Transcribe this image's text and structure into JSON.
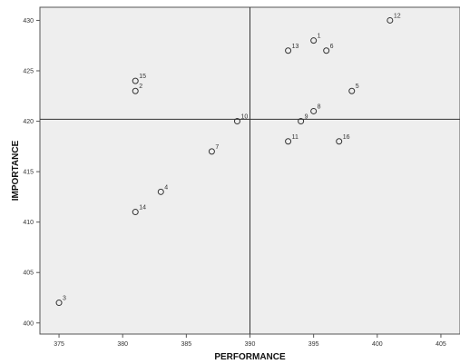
{
  "chart_data": {
    "type": "scatter",
    "title": "",
    "xlabel": "PERFORMANCE",
    "ylabel": "IMPORTANCE",
    "xlim": [
      373.5,
      406.5
    ],
    "ylim": [
      398.9,
      431.3
    ],
    "xticks": [
      375,
      380,
      385,
      390,
      395,
      400,
      405
    ],
    "yticks": [
      400,
      405,
      410,
      415,
      420,
      425,
      430
    ],
    "reference_lines": {
      "x": 390,
      "y": 420.2
    },
    "grid": false,
    "background_color": "#eeeeee",
    "marker_color": "#333333",
    "points": [
      {
        "label": "1",
        "x": 395,
        "y": 428
      },
      {
        "label": "2",
        "x": 381,
        "y": 423
      },
      {
        "label": "3",
        "x": 375,
        "y": 402
      },
      {
        "label": "4",
        "x": 383,
        "y": 413
      },
      {
        "label": "5",
        "x": 398,
        "y": 423
      },
      {
        "label": "6",
        "x": 396,
        "y": 427
      },
      {
        "label": "7",
        "x": 387,
        "y": 417
      },
      {
        "label": "8",
        "x": 395,
        "y": 421
      },
      {
        "label": "9",
        "x": 394,
        "y": 420
      },
      {
        "label": "10",
        "x": 389,
        "y": 420
      },
      {
        "label": "11",
        "x": 393,
        "y": 418
      },
      {
        "label": "12",
        "x": 401,
        "y": 430
      },
      {
        "label": "13",
        "x": 393,
        "y": 427
      },
      {
        "label": "14",
        "x": 381,
        "y": 411
      },
      {
        "label": "15",
        "x": 381,
        "y": 424
      },
      {
        "label": "16",
        "x": 397,
        "y": 418
      }
    ]
  }
}
